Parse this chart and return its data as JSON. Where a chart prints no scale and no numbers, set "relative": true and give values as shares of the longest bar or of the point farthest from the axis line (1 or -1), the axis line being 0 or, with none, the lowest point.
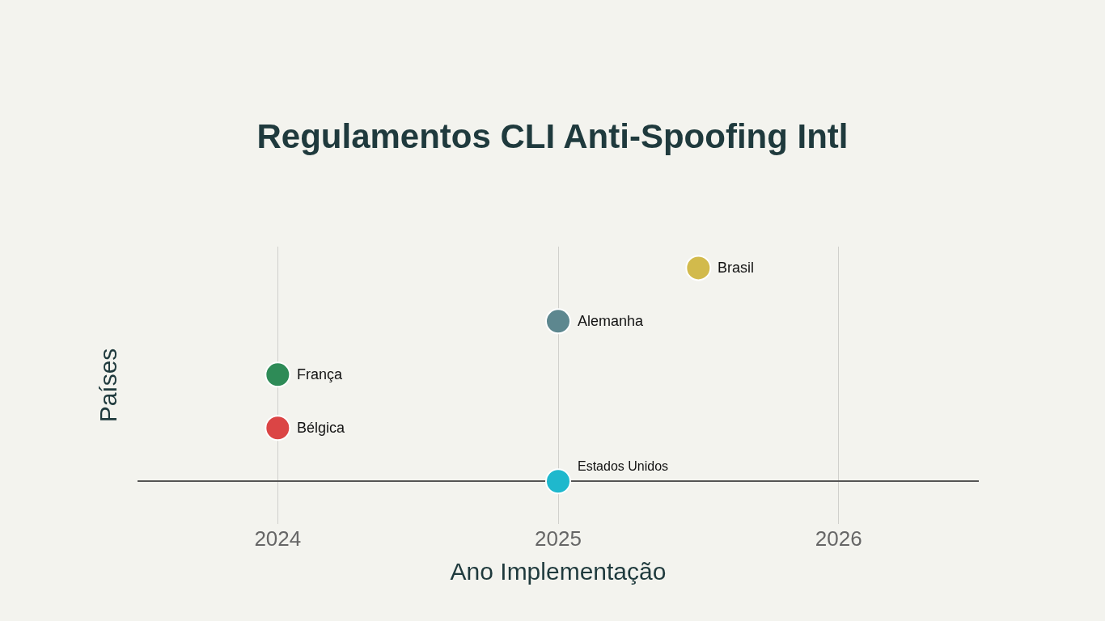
{
  "chart_data": {
    "type": "scatter",
    "title": "Regulamentos CLI Anti-Spoofing Intl",
    "xlabel": "Ano Implementação",
    "ylabel": "Países",
    "relative": true,
    "x": [
      2025,
      2024,
      2024,
      2025,
      2025.5
    ],
    "values": [
      0,
      0.25,
      0.5,
      0.75,
      1
    ],
    "colors": [
      "#1fb8cd",
      "#db4545",
      "#2e8b57",
      "#5d878f",
      "#d2ba4c"
    ],
    "annotations": [
      {
        "text": "Estados Unidos",
        "x": 2025,
        "y": 0
      },
      {
        "text": "Bélgica",
        "x": 2024,
        "y": 0.25
      },
      {
        "text": "França",
        "x": 2024,
        "y": 0.5
      },
      {
        "text": "Alemanha",
        "x": 2025,
        "y": 0.75
      },
      {
        "text": "Brasil",
        "x": 2025.5,
        "y": 1
      }
    ],
    "xlim": [
      2023.5,
      2026.5
    ],
    "xticks": [
      2024,
      2025,
      2026
    ],
    "grid": "x",
    "legend": false,
    "marker": "circle",
    "tick_labels": "x"
  }
}
